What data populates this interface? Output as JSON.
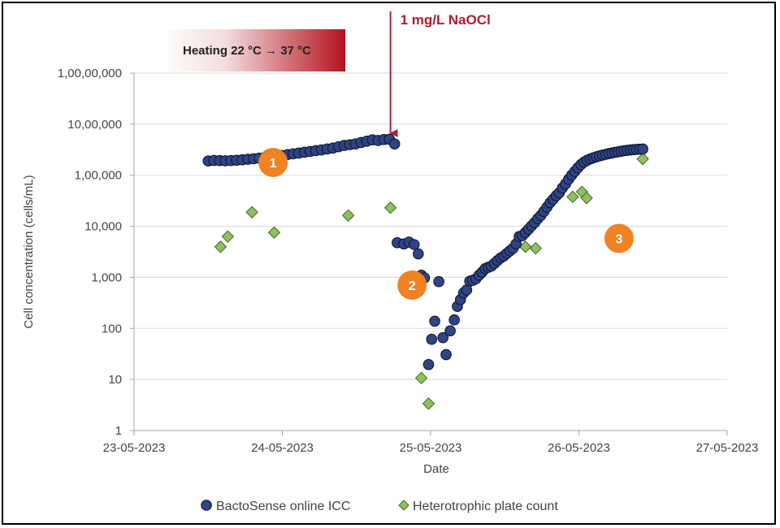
{
  "chart_data": {
    "type": "scatter",
    "xlabel": "Date",
    "ylabel": "Cell concentration (cells/mL)",
    "yscale": "log",
    "ylim": [
      1,
      100000000
    ],
    "xlim": [
      "2023-05-23",
      "2023-05-27"
    ],
    "x_ticks": [
      "23-05-2023",
      "24-05-2023",
      "25-05-2023",
      "26-05-2023",
      "27-05-2023"
    ],
    "y_ticks": [
      "1",
      "10",
      "100",
      "1,000",
      "10,000",
      "1,00,000",
      "10,00,000",
      "1,00,00,000"
    ],
    "grid": "horizontal",
    "legend_position": "bottom",
    "series": [
      {
        "name": "BactoSense online ICC",
        "marker": "circle",
        "color": "#2f4480",
        "points": [
          [
            "2023-05-23 12:00",
            1080000
          ],
          [
            "2023-05-23 12:55",
            1110000
          ],
          [
            "2023-05-23 13:50",
            1100000
          ],
          [
            "2023-05-23 14:45",
            1090000
          ],
          [
            "2023-05-23 15:40",
            1100000
          ],
          [
            "2023-05-23 16:35",
            1120000
          ],
          [
            "2023-05-23 17:30",
            1150000
          ],
          [
            "2023-05-23 18:25",
            1180000
          ],
          [
            "2023-05-23 19:20",
            1210000
          ],
          [
            "2023-05-23 20:15",
            1250000
          ],
          [
            "2023-05-23 21:10",
            1300000
          ],
          [
            "2023-05-23 22:05",
            1330000
          ],
          [
            "2023-05-23 23:00",
            1380000
          ],
          [
            "2023-05-23 23:55",
            1430000
          ],
          [
            "2023-05-24 00:50",
            1500000
          ],
          [
            "2023-05-24 01:45",
            1560000
          ],
          [
            "2023-05-24 02:40",
            1620000
          ],
          [
            "2023-05-24 03:35",
            1690000
          ],
          [
            "2023-05-24 04:30",
            1760000
          ],
          [
            "2023-05-24 05:25",
            1840000
          ],
          [
            "2023-05-24 06:20",
            1910000
          ],
          [
            "2023-05-24 07:15",
            2000000
          ],
          [
            "2023-05-24 08:10",
            2100000
          ],
          [
            "2023-05-24 09:05",
            2250000
          ],
          [
            "2023-05-24 10:00",
            2400000
          ],
          [
            "2023-05-24 10:55",
            2500000
          ],
          [
            "2023-05-24 11:50",
            2600000
          ],
          [
            "2023-05-24 12:45",
            2800000
          ],
          [
            "2023-05-24 13:40",
            3000000
          ],
          [
            "2023-05-24 14:35",
            3200000
          ],
          [
            "2023-05-24 15:30",
            3100000
          ],
          [
            "2023-05-24 16:25",
            3250000
          ],
          [
            "2023-05-24 17:20",
            3300000
          ],
          [
            "2023-05-24 18:10",
            2600000
          ],
          [
            "2023-05-24 18:35",
            16000
          ],
          [
            "2023-05-24 19:40",
            15000
          ],
          [
            "2023-05-24 20:30",
            16500
          ],
          [
            "2023-05-24 21:20",
            14500
          ],
          [
            "2023-05-24 22:00",
            9000
          ],
          [
            "2023-05-24 22:30",
            3000
          ],
          [
            "2023-05-24 23:00",
            2600
          ],
          [
            "2023-05-24 23:40",
            30
          ],
          [
            "2023-05-25 00:10",
            110
          ],
          [
            "2023-05-25 00:40",
            280
          ],
          [
            "2023-05-25 01:20",
            2150
          ],
          [
            "2023-05-25 02:00",
            120
          ],
          [
            "2023-05-25 02:30",
            50
          ],
          [
            "2023-05-25 03:10",
            170
          ],
          [
            "2023-05-25 03:50",
            300
          ],
          [
            "2023-05-25 04:20",
            600
          ],
          [
            "2023-05-25 04:50",
            850
          ],
          [
            "2023-05-25 05:20",
            1200
          ],
          [
            "2023-05-25 05:50",
            1400
          ],
          [
            "2023-05-25 06:20",
            2200
          ],
          [
            "2023-05-25 06:50",
            2300
          ],
          [
            "2023-05-25 07:20",
            2500
          ],
          [
            "2023-05-25 07:50",
            3000
          ],
          [
            "2023-05-25 08:20",
            3500
          ],
          [
            "2023-05-25 08:50",
            4200
          ],
          [
            "2023-05-25 09:20",
            4500
          ],
          [
            "2023-05-25 09:50",
            4800
          ],
          [
            "2023-05-25 10:20",
            5500
          ],
          [
            "2023-05-25 10:50",
            6400
          ],
          [
            "2023-05-25 11:20",
            7300
          ],
          [
            "2023-05-25 11:50",
            8000
          ],
          [
            "2023-05-25 12:20",
            9200
          ],
          [
            "2023-05-25 12:50",
            10500
          ],
          [
            "2023-05-25 13:20",
            12000
          ],
          [
            "2023-05-25 13:50",
            15000
          ],
          [
            "2023-05-25 14:20",
            22000
          ],
          [
            "2023-05-25 14:50",
            23000
          ],
          [
            "2023-05-25 15:20",
            27000
          ],
          [
            "2023-05-25 15:50",
            32000
          ],
          [
            "2023-05-25 16:20",
            38000
          ],
          [
            "2023-05-25 16:50",
            45000
          ],
          [
            "2023-05-25 17:20",
            55000
          ],
          [
            "2023-05-25 17:50",
            65000
          ],
          [
            "2023-05-25 18:20",
            80000
          ],
          [
            "2023-05-25 18:50",
            100000
          ],
          [
            "2023-05-25 19:20",
            125000
          ],
          [
            "2023-05-25 19:50",
            150000
          ],
          [
            "2023-05-25 20:20",
            180000
          ],
          [
            "2023-05-25 20:50",
            210000
          ],
          [
            "2023-05-25 21:20",
            270000
          ],
          [
            "2023-05-25 21:50",
            330000
          ],
          [
            "2023-05-25 22:20",
            420000
          ],
          [
            "2023-05-25 22:50",
            520000
          ],
          [
            "2023-05-25 23:20",
            630000
          ],
          [
            "2023-05-25 23:50",
            760000
          ],
          [
            "2023-05-26 00:20",
            900000
          ],
          [
            "2023-05-26 00:50",
            1020000
          ],
          [
            "2023-05-26 01:20",
            1120000
          ],
          [
            "2023-05-26 01:50",
            1200000
          ],
          [
            "2023-05-26 02:20",
            1270000
          ],
          [
            "2023-05-26 02:50",
            1340000
          ],
          [
            "2023-05-26 03:20",
            1400000
          ],
          [
            "2023-05-26 03:50",
            1460000
          ],
          [
            "2023-05-26 04:20",
            1520000
          ],
          [
            "2023-05-26 04:50",
            1580000
          ],
          [
            "2023-05-26 05:20",
            1630000
          ],
          [
            "2023-05-26 05:50",
            1680000
          ],
          [
            "2023-05-26 06:20",
            1730000
          ],
          [
            "2023-05-26 06:50",
            1780000
          ],
          [
            "2023-05-26 07:20",
            1830000
          ],
          [
            "2023-05-26 07:50",
            1870000
          ],
          [
            "2023-05-26 08:20",
            1910000
          ],
          [
            "2023-05-26 08:50",
            1940000
          ],
          [
            "2023-05-26 09:20",
            1960000
          ],
          [
            "2023-05-26 09:50",
            1980000
          ],
          [
            "2023-05-26 10:20",
            2000000
          ]
        ]
      },
      {
        "name": "Heterotrophic plate count",
        "marker": "diamond",
        "color": "#8fbf5f",
        "points": [
          [
            "2023-05-23 14:00",
            13000
          ],
          [
            "2023-05-23 15:10",
            22000
          ],
          [
            "2023-05-23 19:05",
            77000
          ],
          [
            "2023-05-23 22:40",
            27000
          ],
          [
            "2023-05-24 10:40",
            65000
          ],
          [
            "2023-05-24 17:30",
            97000
          ],
          [
            "2023-05-24 22:30",
            15
          ],
          [
            "2023-05-24 23:40",
            4
          ],
          [
            "2023-05-25 15:20",
            13000
          ],
          [
            "2023-05-25 17:00",
            12000
          ],
          [
            "2023-05-25 23:00",
            170000
          ],
          [
            "2023-05-26 00:30",
            220000
          ],
          [
            "2023-05-26 01:15",
            160000
          ],
          [
            "2023-05-26 10:20",
            1200000
          ]
        ]
      }
    ],
    "annotations": {
      "dose_label": "1 mg/L NaOCl",
      "dose_time": "2023-05-24 17:30",
      "heating_label": "Heating 22 °C → 37 °C",
      "phase_markers": [
        {
          "label": "1",
          "x": "2023-05-23 22:30",
          "y": 1000000
        },
        {
          "label": "2",
          "x": "2023-05-24 21:00",
          "y": 1800
        },
        {
          "label": "3",
          "x": "2023-05-26 06:30",
          "y": 20000
        }
      ]
    }
  },
  "colors": {
    "bacto_fill": "#2f4480",
    "bacto_edge": "#0a1230",
    "hpc_fill": "#8fbf5f",
    "hpc_edge": "#3f6b24",
    "annotation_red": "#b01c2e",
    "phase_orange": "#f08224",
    "grid": "#d9d9d9",
    "axis": "#a6a6a6"
  }
}
